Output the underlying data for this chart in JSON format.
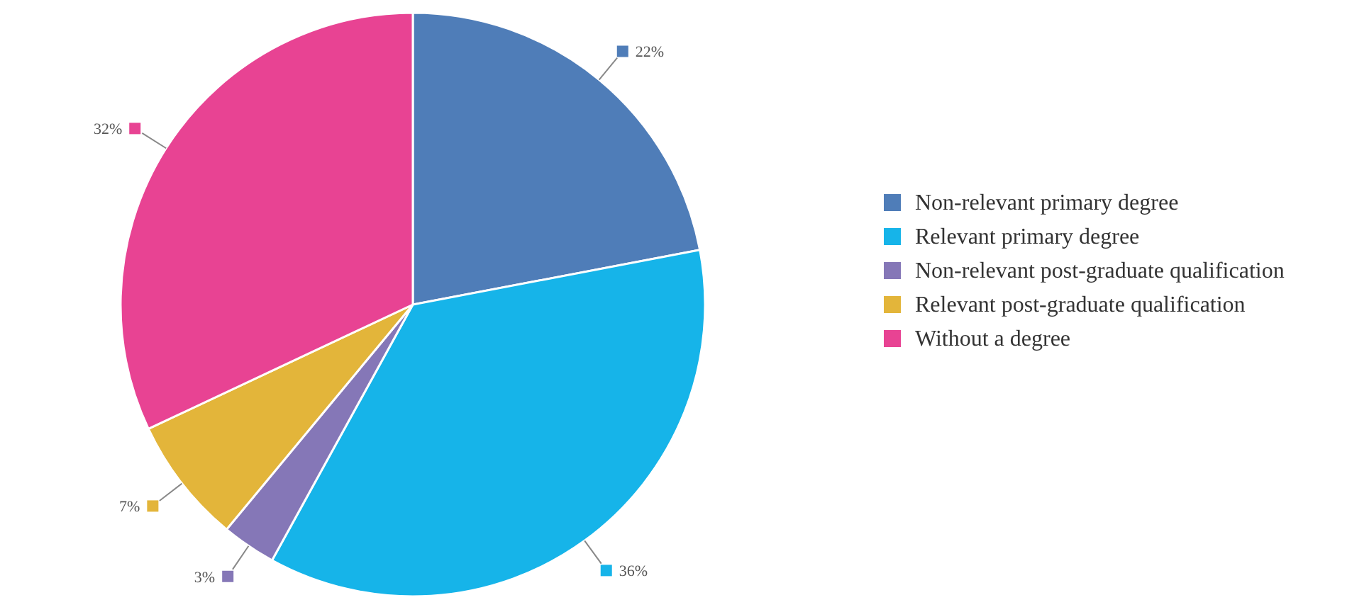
{
  "chart_data": {
    "type": "pie",
    "categories": [
      "Non-relevant primary degree",
      "Relevant primary degree",
      "Non-relevant post-graduate qualification",
      "Relevant post-graduate qualification",
      "Without a degree"
    ],
    "values": [
      22,
      36,
      3,
      7,
      32
    ],
    "colors": [
      "#4f7db8",
      "#16b4e9",
      "#8577b7",
      "#e3b53a",
      "#e84393"
    ],
    "value_labels": [
      "22%",
      "36%",
      "3%",
      "7%",
      "32%"
    ],
    "legend": "right"
  }
}
